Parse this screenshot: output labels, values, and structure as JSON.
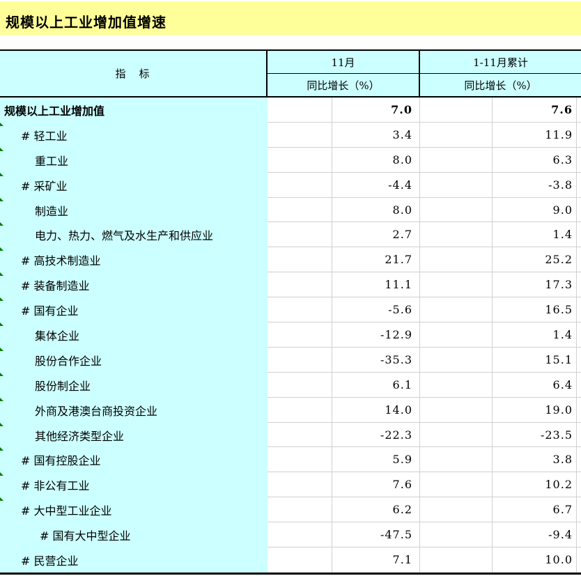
{
  "title": "规模以上工业增加值增速",
  "colors": {
    "title_bg": "#FFFF99",
    "header_bg": "#CCFFFF",
    "grid_line": "#D0D0D0",
    "border": "#000000",
    "flag_green": "#008000"
  },
  "table": {
    "indicator_header": "指　标",
    "col_groups": [
      {
        "period": "11月",
        "measure": "同比增长（%）"
      },
      {
        "period": "1-11月累计",
        "measure": "同比增长（%）"
      }
    ],
    "rows": [
      {
        "label": "规模以上工业增加值",
        "indent": 0,
        "bold": true,
        "flag": false,
        "nov": "7.0",
        "cum": "7.6"
      },
      {
        "label": "# 轻工业",
        "indent": 1,
        "bold": false,
        "flag": true,
        "nov": "3.4",
        "cum": "11.9"
      },
      {
        "label": "重工业",
        "indent": 2,
        "bold": false,
        "flag": true,
        "nov": "8.0",
        "cum": "6.3"
      },
      {
        "label": "# 采矿业",
        "indent": 1,
        "bold": false,
        "flag": true,
        "nov": "-4.4",
        "cum": "-3.8"
      },
      {
        "label": "制造业",
        "indent": 2,
        "bold": false,
        "flag": true,
        "nov": "8.0",
        "cum": "9.0"
      },
      {
        "label": "电力、热力、燃气及水生产和供应业",
        "indent": 2,
        "bold": false,
        "flag": true,
        "nov": "2.7",
        "cum": "1.4"
      },
      {
        "label": "# 高技术制造业",
        "indent": 1,
        "bold": false,
        "flag": true,
        "nov": "21.7",
        "cum": "25.2"
      },
      {
        "label": "# 装备制造业",
        "indent": 1,
        "bold": false,
        "flag": true,
        "nov": "11.1",
        "cum": "17.3"
      },
      {
        "label": "# 国有企业",
        "indent": 1,
        "bold": false,
        "flag": true,
        "nov": "-5.6",
        "cum": "16.5"
      },
      {
        "label": "集体企业",
        "indent": 2,
        "bold": false,
        "flag": true,
        "nov": "-12.9",
        "cum": "1.4"
      },
      {
        "label": "股份合作企业",
        "indent": 2,
        "bold": false,
        "flag": true,
        "nov": "-35.3",
        "cum": "15.1"
      },
      {
        "label": "股份制企业",
        "indent": 2,
        "bold": false,
        "flag": true,
        "nov": "6.1",
        "cum": "6.4"
      },
      {
        "label": "外商及港澳台商投资企业",
        "indent": 2,
        "bold": false,
        "flag": true,
        "nov": "14.0",
        "cum": "19.0"
      },
      {
        "label": "其他经济类型企业",
        "indent": 2,
        "bold": false,
        "flag": true,
        "nov": "-22.3",
        "cum": "-23.5"
      },
      {
        "label": "# 国有控股企业",
        "indent": 1,
        "bold": false,
        "flag": true,
        "nov": "5.9",
        "cum": "3.8"
      },
      {
        "label": "# 非公有工业",
        "indent": 1,
        "bold": false,
        "flag": true,
        "nov": "7.6",
        "cum": "10.2"
      },
      {
        "label": "# 大中型工业企业",
        "indent": 1,
        "bold": false,
        "flag": true,
        "nov": "6.2",
        "cum": "6.7"
      },
      {
        "label": "# 国有大中型企业",
        "indent": 3,
        "bold": false,
        "flag": false,
        "nov": "-47.5",
        "cum": "-9.4"
      },
      {
        "label": "# 民营企业",
        "indent": 1,
        "bold": false,
        "flag": false,
        "nov": "7.1",
        "cum": "10.0"
      }
    ]
  }
}
